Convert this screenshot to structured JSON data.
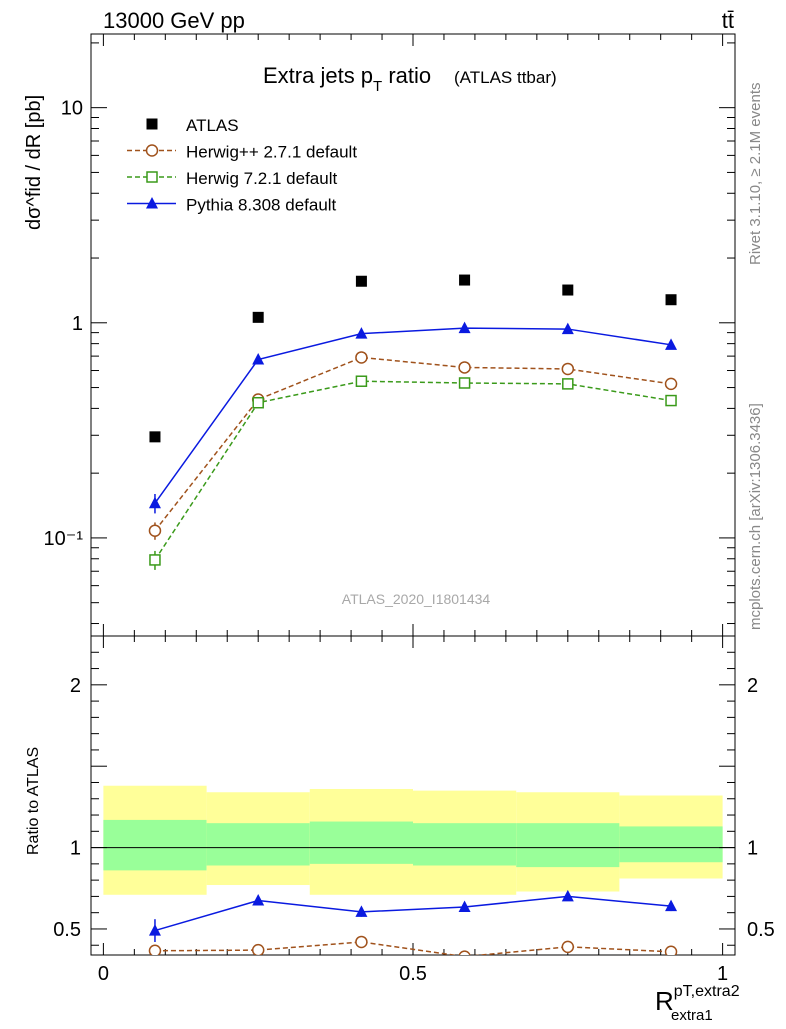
{
  "header": {
    "energy": "13000 GeV pp",
    "process": "tt̄"
  },
  "title": {
    "main": "Extra jets p",
    "sub": "T",
    "rest": " ratio",
    "paren": "(ATLAS ttbar)"
  },
  "ylabel_top": "dσ^fid / dR [pb]",
  "ylabel_ratio": "Ratio to ATLAS",
  "xlabel": {
    "base": "R",
    "sup": "pT,extra2",
    "sub": "extra1"
  },
  "side_labels": {
    "rivet": "Rivet 3.1.10, ≥ 2.1M events",
    "mcplots": "mcplots.cern.ch [arXiv:1306.3436]"
  },
  "watermark": "ATLAS_2020_I1801434",
  "colors": {
    "atlas": "#000000",
    "herwigpp": "#a0521c",
    "herwig7": "#3a9a1a",
    "pythia": "#0a1ae0",
    "band_inner": "#99ff99",
    "band_outer": "#ffff99"
  },
  "legend": [
    {
      "label": "ATLAS",
      "marker": "square-filled"
    },
    {
      "label": "Herwig++ 2.7.1 default",
      "marker": "circle-open"
    },
    {
      "label": "Herwig 7.2.1 default",
      "marker": "square-open"
    },
    {
      "label": "Pythia 8.308 default",
      "marker": "triangle-filled"
    }
  ],
  "chart_data": [
    {
      "type": "scatter",
      "ylog": true,
      "xlim": [
        -0.02,
        1.02
      ],
      "ylim": [
        0.035,
        22
      ],
      "yticks": [
        0.1,
        1,
        10
      ],
      "ytick_labels": [
        "10⁻¹",
        "1",
        "10"
      ],
      "x": [
        0.0833,
        0.25,
        0.4167,
        0.5833,
        0.75,
        0.9167
      ],
      "xerr": 0.0833,
      "series": [
        {
          "name": "ATLAS",
          "values": [
            0.295,
            1.06,
            1.56,
            1.58,
            1.42,
            1.28
          ]
        },
        {
          "name": "Herwig++ 2.7.1 default",
          "values": [
            0.108,
            0.44,
            0.69,
            0.62,
            0.61,
            0.52
          ],
          "err": [
            0.01,
            0.01,
            0.01,
            0.01,
            0.01,
            0.01
          ]
        },
        {
          "name": "Herwig 7.2.1 default",
          "values": [
            0.079,
            0.425,
            0.535,
            0.525,
            0.52,
            0.435
          ],
          "err": [
            0.008,
            0.01,
            0.01,
            0.01,
            0.01,
            0.01
          ]
        },
        {
          "name": "Pythia 8.308 default",
          "values": [
            0.145,
            0.675,
            0.89,
            0.945,
            0.935,
            0.79
          ],
          "err": [
            0.015,
            0.015,
            0.015,
            0.015,
            0.015,
            0.015
          ]
        }
      ]
    },
    {
      "type": "scatter",
      "xlim": [
        -0.02,
        1.02
      ],
      "ylim": [
        0.34,
        2.3
      ],
      "xticks": [
        0,
        0.5,
        1
      ],
      "xtick_labels": [
        "0",
        "0.5",
        "1"
      ],
      "yticks": [
        0.5,
        1,
        2
      ],
      "ytick_labels": [
        "0.5",
        "1",
        "2"
      ],
      "bands": {
        "edges": [
          0,
          0.1667,
          0.3333,
          0.5,
          0.6667,
          0.8333,
          1
        ],
        "inner_lo": [
          0.86,
          0.89,
          0.9,
          0.89,
          0.88,
          0.91
        ],
        "inner_hi": [
          1.17,
          1.15,
          1.16,
          1.15,
          1.15,
          1.13
        ],
        "outer_lo": [
          0.71,
          0.77,
          0.71,
          0.71,
          0.73,
          0.81
        ],
        "outer_hi": [
          1.38,
          1.34,
          1.36,
          1.35,
          1.34,
          1.32
        ]
      },
      "series": [
        {
          "name": "Herwig++ 2.7.1 default",
          "values": [
            0.366,
            0.37,
            0.42,
            0.33,
            0.39,
            0.36
          ],
          "err": [
            0.02,
            0.02,
            0.02,
            0.02,
            0.02,
            0.02
          ]
        },
        {
          "name": "Pythia 8.308 default",
          "values": [
            0.49,
            0.675,
            0.605,
            0.635,
            0.7,
            0.64
          ],
          "err": [
            0.07,
            0.03,
            0.03,
            0.03,
            0.025,
            0.03
          ]
        }
      ]
    }
  ]
}
